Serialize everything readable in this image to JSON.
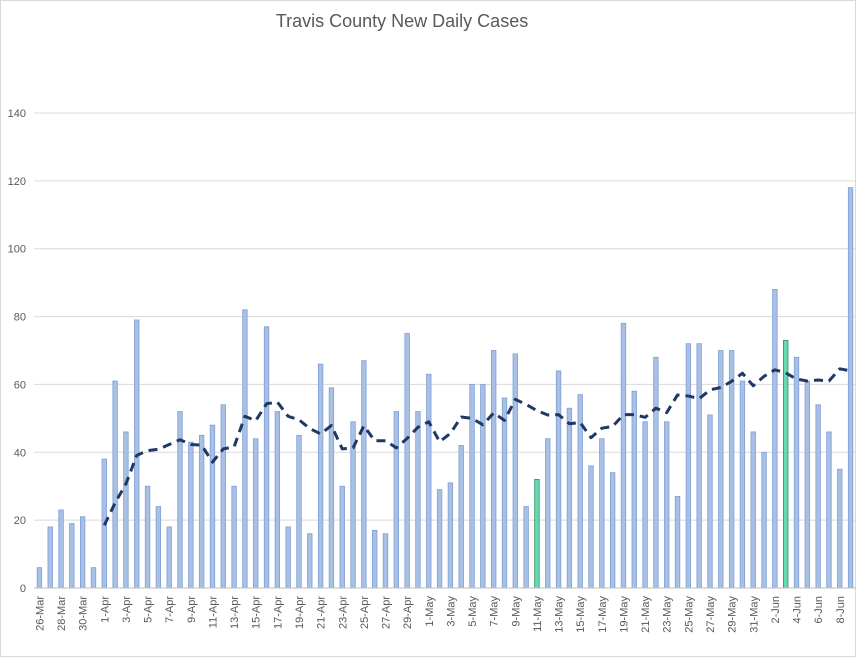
{
  "chart_data": {
    "type": "bar",
    "title": "Travis County New Daily Cases",
    "xlabel": "",
    "ylabel": "",
    "ylim": [
      0,
      140
    ],
    "yticks": [
      0,
      20,
      40,
      60,
      80,
      100,
      120,
      140
    ],
    "grid": true,
    "legend": "none",
    "colors": {
      "bar": "#a9c0e6",
      "bar_edge": "#7f9fd3",
      "highlight": "#66d9b0",
      "highlight_edge": "#2f8f6a",
      "line": "#1f3864",
      "grid": "#d9d9d9",
      "axis": "#bfbfbf"
    },
    "categories": [
      "26-Mar",
      "27-Mar",
      "28-Mar",
      "29-Mar",
      "30-Mar",
      "31-Mar",
      "1-Apr",
      "2-Apr",
      "3-Apr",
      "4-Apr",
      "5-Apr",
      "6-Apr",
      "7-Apr",
      "8-Apr",
      "9-Apr",
      "10-Apr",
      "11-Apr",
      "12-Apr",
      "13-Apr",
      "14-Apr",
      "15-Apr",
      "16-Apr",
      "17-Apr",
      "18-Apr",
      "19-Apr",
      "20-Apr",
      "21-Apr",
      "22-Apr",
      "23-Apr",
      "24-Apr",
      "25-Apr",
      "26-Apr",
      "27-Apr",
      "28-Apr",
      "29-Apr",
      "30-Apr",
      "1-May",
      "2-May",
      "3-May",
      "4-May",
      "5-May",
      "6-May",
      "7-May",
      "8-May",
      "9-May",
      "10-May",
      "11-May",
      "12-May",
      "13-May",
      "14-May",
      "15-May",
      "16-May",
      "17-May",
      "18-May",
      "19-May",
      "20-May",
      "21-May",
      "22-May",
      "23-May",
      "24-May",
      "25-May",
      "26-May",
      "27-May",
      "28-May",
      "29-May",
      "30-May",
      "31-May",
      "1-Jun",
      "2-Jun",
      "3-Jun",
      "4-Jun",
      "5-Jun",
      "6-Jun",
      "7-Jun",
      "8-Jun",
      "9-Jun"
    ],
    "values": [
      6,
      18,
      23,
      19,
      21,
      6,
      38,
      61,
      46,
      79,
      30,
      24,
      18,
      52,
      43,
      45,
      48,
      54,
      30,
      82,
      44,
      77,
      52,
      18,
      45,
      16,
      66,
      59,
      30,
      49,
      67,
      17,
      16,
      52,
      75,
      52,
      63,
      29,
      31,
      42,
      60,
      60,
      70,
      56,
      69,
      24,
      32,
      44,
      64,
      53,
      57,
      36,
      44,
      34,
      78,
      58,
      49,
      68,
      49,
      27,
      72,
      72,
      51,
      70,
      70,
      61,
      46,
      40,
      88,
      73,
      68,
      61,
      54,
      46,
      35,
      118
    ],
    "highlighted_categories": [
      "11-May",
      "3-Jun"
    ],
    "moving_average": [
      null,
      null,
      null,
      null,
      null,
      null,
      18.5,
      25.1,
      30.7,
      39.1,
      40.5,
      40.9,
      42.3,
      43.7,
      42.3,
      42.1,
      37.1,
      41.0,
      41.6,
      50.6,
      49.3,
      54.3,
      54.8,
      50.6,
      49.6,
      47.0,
      45.4,
      47.9,
      41.0,
      41.3,
      47.8,
      43.4,
      43.4,
      41.3,
      44.1,
      47.4,
      49.0,
      43.1,
      45.6,
      50.4,
      50.0,
      48.1,
      51.6,
      49.4,
      55.6,
      54.1,
      52.3,
      51.0,
      51.1,
      48.4,
      48.8,
      44.3,
      47.1,
      47.6,
      51.1,
      51.1,
      50.3,
      53.0,
      51.7,
      56.9,
      56.6,
      55.8,
      58.4,
      59.1,
      60.9,
      63.3,
      59.6,
      62.4,
      64.3,
      63.4,
      61.6,
      61.0,
      61.3,
      61.0,
      64.6,
      64.0
    ]
  }
}
